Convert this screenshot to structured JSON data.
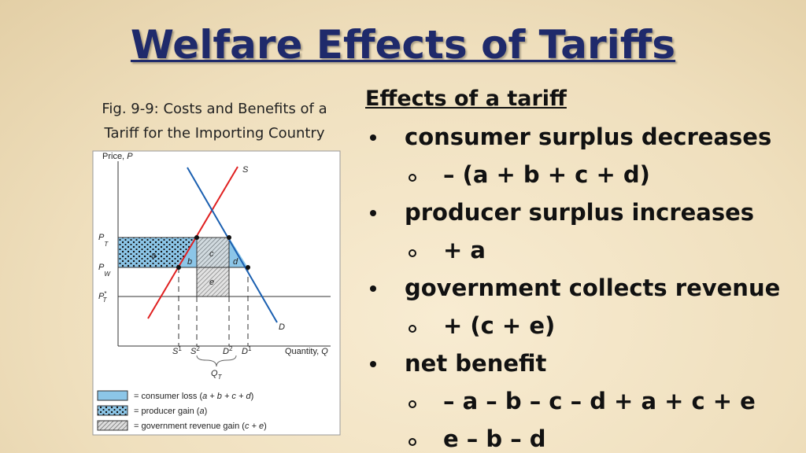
{
  "header": {
    "title": "Welfare Effects of Tariffs"
  },
  "figure": {
    "caption": [
      "Fig. 9-9: Costs and Benefits of a",
      "Tariff for the Importing Country"
    ],
    "y_axis_label": {
      "base": "Price, ",
      "var": "P"
    },
    "x_axis_label": {
      "base": "Quantity, ",
      "var": "Q"
    },
    "supply_label": "S",
    "demand_label": "D",
    "price_labels": [
      {
        "base": "P",
        "sub": "T",
        "sup": ""
      },
      {
        "base": "P",
        "sub": "W",
        "sup": ""
      },
      {
        "base": "P",
        "sub": "T",
        "sup": "*"
      }
    ],
    "area_labels": [
      "a",
      "b",
      "c",
      "d",
      "e"
    ],
    "quantity_labels": [
      {
        "base": "S",
        "sup": "1"
      },
      {
        "base": "S",
        "sup": "2"
      },
      {
        "base": "D",
        "sup": "2"
      },
      {
        "base": "D",
        "sup": "1"
      }
    ],
    "import_label": {
      "base": "Q",
      "sub": "T"
    },
    "legend": [
      {
        "pre": "= consumer loss (",
        "italic": "a + b + c + d",
        "post": ")"
      },
      {
        "pre": "= producer gain (",
        "italic": "a",
        "post": ")"
      },
      {
        "pre": "= government revenue gain (",
        "italic": "c + e",
        "post": ")"
      }
    ]
  },
  "effects": {
    "heading": "Effects of a tariff",
    "items": [
      {
        "text": "consumer surplus decreases",
        "details": [
          "– (a + b + c + d)"
        ]
      },
      {
        "text": "producer surplus increases",
        "details": [
          "+ a"
        ]
      },
      {
        "text": "government collects revenue",
        "details": [
          "+ (c + e)"
        ]
      },
      {
        "text": "net benefit",
        "details": [
          "– a – b – c – d + a + c + e",
          "e – b – d"
        ]
      }
    ]
  }
}
